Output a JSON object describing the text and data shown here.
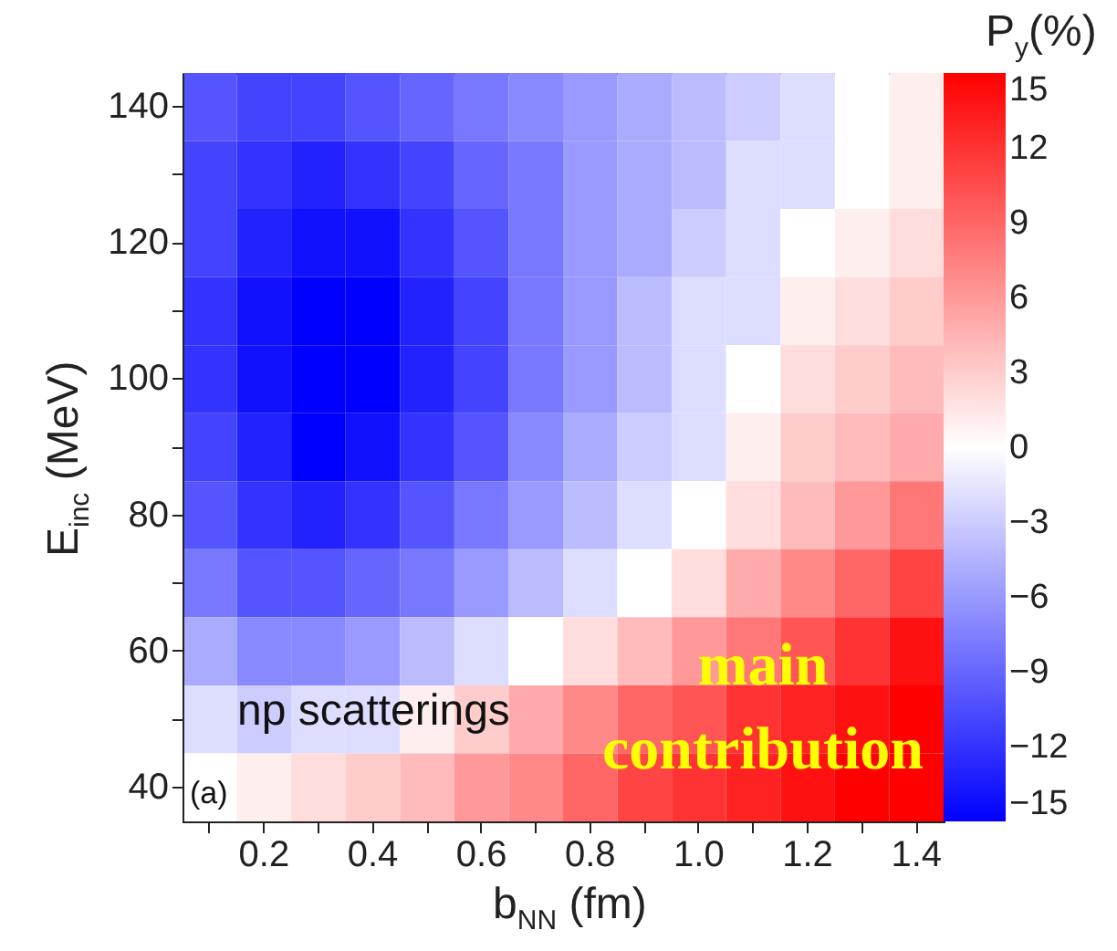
{
  "chart_data": {
    "type": "heatmap",
    "xlabel": "b$_{NN}$ (fm)",
    "ylabel": "E$_{inc}$ (MeV)",
    "legend_title": "P$_{y}$(%)",
    "categories": [
      null,
      "0.2",
      null,
      "0.4",
      null,
      "0.6",
      null,
      "0.8",
      null,
      "1.0",
      null,
      "1.2",
      null,
      "1.4"
    ],
    "y_categories": [
      "140",
      null,
      "120",
      null,
      "100",
      null,
      "80",
      null,
      "60",
      null,
      "40"
    ],
    "clim": [
      -15,
      15
    ],
    "cticks": [
      -15,
      -12,
      -9,
      -6,
      -3,
      0,
      3,
      6,
      9,
      12,
      15
    ],
    "colors": [
      "#0000ff",
      "#ffffff",
      "#ff0000"
    ],
    "cells": [
      [
        -10,
        -11,
        -11,
        -10,
        -9,
        -8,
        -7,
        -6,
        -5,
        -4,
        -3,
        -2,
        0,
        1
      ],
      [
        -11,
        -12,
        -13,
        -12,
        -11,
        -9,
        -8,
        -6,
        -5,
        -4,
        -2,
        -2,
        0,
        1
      ],
      [
        -11,
        -13,
        -14,
        -14,
        -12,
        -10,
        -8,
        -6,
        -5,
        -3,
        -2,
        0,
        1,
        2
      ],
      [
        -12,
        -14,
        -15,
        -15,
        -13,
        -11,
        -8,
        -6,
        -4,
        -2,
        -2,
        1,
        2,
        3
      ],
      [
        -12,
        -14,
        -15,
        -15,
        -13,
        -11,
        -8,
        -6,
        -4,
        -2,
        0,
        2,
        3,
        4
      ],
      [
        -11,
        -13,
        -15,
        -14,
        -12,
        -10,
        -7,
        -5,
        -3,
        -2,
        1,
        3,
        4,
        5
      ],
      [
        -10,
        -12,
        -13,
        -12,
        -10,
        -8,
        -6,
        -4,
        -2,
        0,
        2,
        4,
        6,
        8
      ],
      [
        -8,
        -10,
        -10,
        -9,
        -8,
        -6,
        -4,
        -2,
        0,
        2,
        5,
        7,
        9,
        11
      ],
      [
        -5,
        -7,
        -7,
        -6,
        -4,
        -2,
        0,
        2,
        4,
        6,
        8,
        10,
        12,
        14
      ],
      [
        -2,
        -3,
        -2,
        -2,
        1,
        3,
        5,
        7,
        9,
        10,
        12,
        13,
        14,
        15
      ],
      [
        0,
        1,
        2,
        3,
        4,
        6,
        7,
        9,
        11,
        12,
        13,
        14,
        15,
        15
      ]
    ],
    "annotations": [
      "np scatterings",
      "(a)",
      "main contribution"
    ]
  }
}
